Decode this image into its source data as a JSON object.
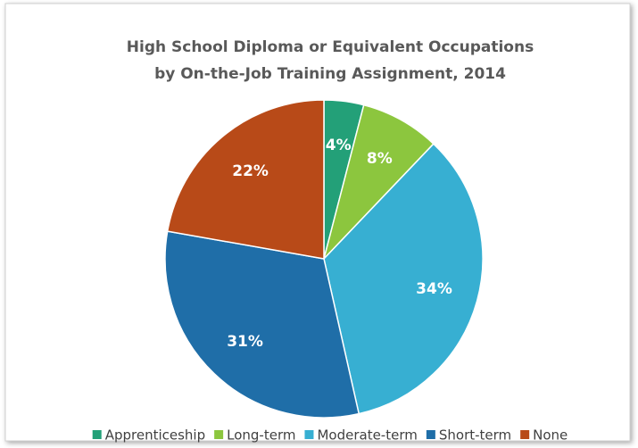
{
  "chart_data": {
    "type": "pie",
    "title": [
      "High School Diploma or Equivalent Occupations",
      "by On-the-Job Training Assignment, 2014"
    ],
    "categories": [
      "Apprenticeship",
      "Long-term",
      "Moderate-term",
      "Short-term",
      "None"
    ],
    "values": [
      4,
      8,
      34,
      31,
      22
    ],
    "value_labels": [
      "4%",
      "8%",
      "34%",
      "31%",
      "22%"
    ],
    "colors": [
      "#23a078",
      "#8cc63e",
      "#37afd2",
      "#1f6ea8",
      "#b84a18"
    ],
    "legend": "bottom"
  }
}
